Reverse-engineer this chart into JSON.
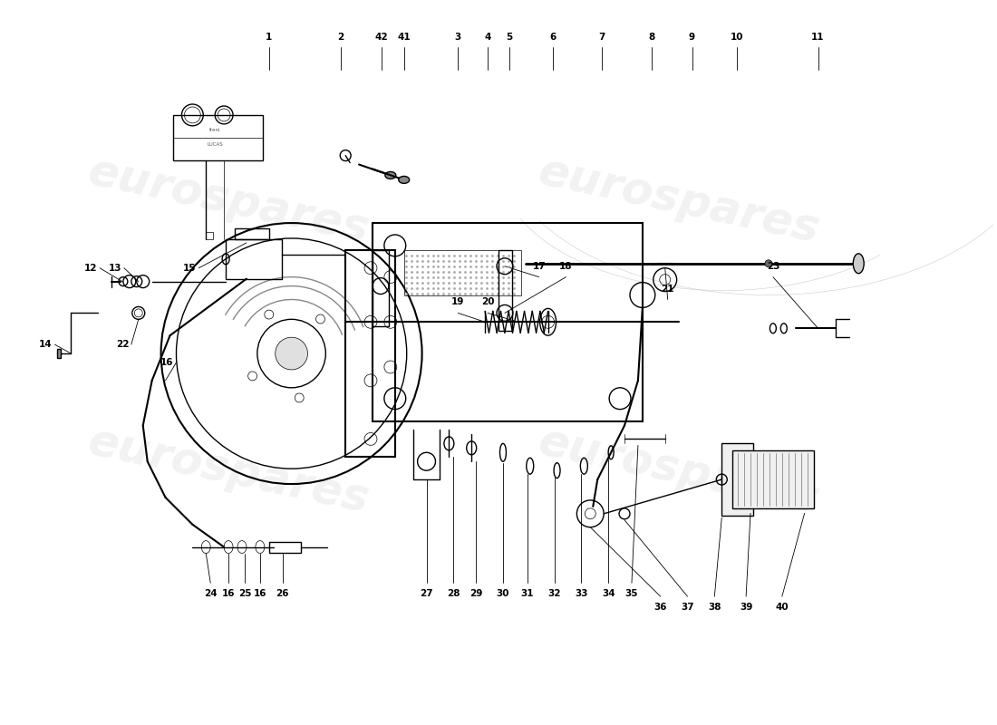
{
  "background_color": "#ffffff",
  "line_color": "#000000",
  "watermark_text": "eurospares",
  "watermark_color": "#d0d0d0",
  "fig_width": 11.0,
  "fig_height": 8.0,
  "dpi": 100
}
